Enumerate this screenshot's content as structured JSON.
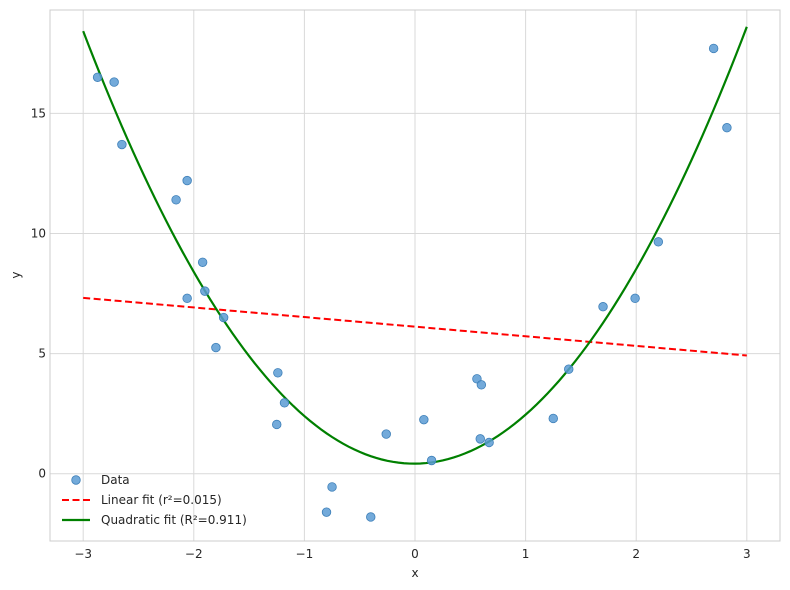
{
  "chart_data": {
    "type": "scatter",
    "title": "",
    "xlabel": "x",
    "ylabel": "y",
    "xlim": [
      -3.3,
      3.3
    ],
    "ylim": [
      -2.8,
      19.3
    ],
    "grid": true,
    "legend_position": "bottom-left",
    "x_ticks": [
      -3,
      -2,
      -1,
      0,
      1,
      2,
      3
    ],
    "x_tick_labels": [
      "−3",
      "−2",
      "−1",
      "0",
      "1",
      "2",
      "3"
    ],
    "y_ticks": [
      0,
      5,
      10,
      15
    ],
    "y_tick_labels": [
      "0",
      "5",
      "10",
      "15"
    ],
    "series": [
      {
        "name": "Data",
        "kind": "scatter",
        "color": "#5a9bd4",
        "points": [
          [
            -2.87,
            16.5
          ],
          [
            -2.72,
            16.3
          ],
          [
            -2.65,
            13.7
          ],
          [
            -2.16,
            11.4
          ],
          [
            -2.06,
            12.2
          ],
          [
            -2.06,
            7.3
          ],
          [
            -1.92,
            8.8
          ],
          [
            -1.9,
            7.6
          ],
          [
            -1.73,
            6.5
          ],
          [
            -1.8,
            5.25
          ],
          [
            -1.24,
            4.2
          ],
          [
            -1.18,
            2.95
          ],
          [
            -1.25,
            2.05
          ],
          [
            -0.75,
            -0.55
          ],
          [
            -0.8,
            -1.6
          ],
          [
            -0.4,
            -1.8
          ],
          [
            -0.26,
            1.65
          ],
          [
            0.08,
            2.25
          ],
          [
            0.15,
            0.55
          ],
          [
            0.56,
            3.95
          ],
          [
            0.6,
            3.7
          ],
          [
            0.59,
            1.45
          ],
          [
            0.67,
            1.3
          ],
          [
            1.25,
            2.3
          ],
          [
            1.39,
            4.35
          ],
          [
            1.7,
            6.95
          ],
          [
            1.99,
            7.3
          ],
          [
            2.2,
            9.65
          ],
          [
            2.7,
            17.7
          ],
          [
            2.82,
            14.4
          ]
        ]
      },
      {
        "name": "Linear fit (r²=0.015)",
        "kind": "line",
        "dash": true,
        "color": "#ff0000",
        "intercept": 6.12,
        "slope": -0.4,
        "x_range": [
          -3,
          3
        ]
      },
      {
        "name": "Quadratic fit (R²=0.911)",
        "kind": "line",
        "dash": false,
        "color": "#008000",
        "a": 2.01,
        "b": 0.03,
        "c": 0.42,
        "x_range": [
          -3,
          3
        ]
      }
    ]
  }
}
